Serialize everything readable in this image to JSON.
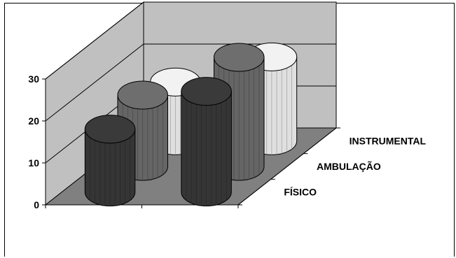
{
  "chart_data": {
    "type": "bar",
    "subtype": "3d-cylinder",
    "categories": [
      "",
      ""
    ],
    "series": [
      {
        "name": "FÍSICO",
        "values": [
          15,
          24
        ],
        "color": "#3a3a3a"
      },
      {
        "name": "AMBULAÇÃO",
        "values": [
          17,
          26
        ],
        "color": "#6e6e6e"
      },
      {
        "name": "INSTRUMENTAL",
        "values": [
          14,
          20
        ],
        "color": "#f2f2f2"
      }
    ],
    "ylim": [
      0,
      30
    ],
    "yticks": [
      0,
      10,
      20,
      30
    ],
    "grid": true,
    "wall_color": "#c0c0c0",
    "floor_color": "#808080"
  }
}
